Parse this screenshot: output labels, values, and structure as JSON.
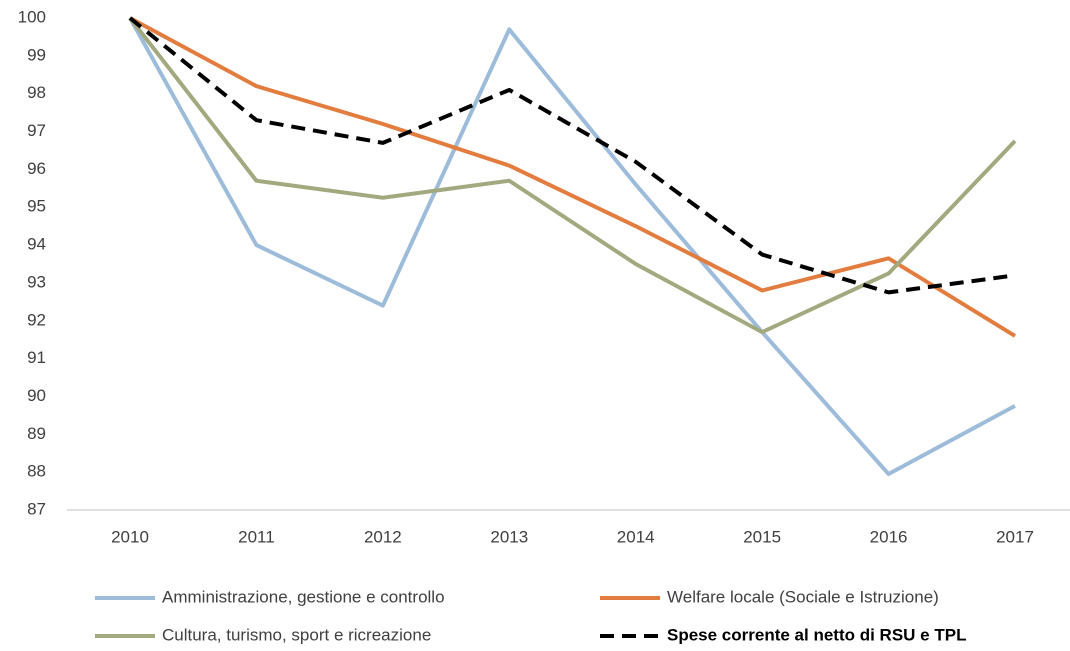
{
  "chart_data": {
    "type": "line",
    "categories": [
      "2010",
      "2011",
      "2012",
      "2013",
      "2014",
      "2015",
      "2016",
      "2017"
    ],
    "series": [
      {
        "name": "Amministrazione, gestione e controllo",
        "color": "#9dbcda",
        "values": [
          100,
          94.0,
          92.4,
          99.7,
          95.6,
          91.7,
          87.95,
          89.75
        ]
      },
      {
        "name": "Welfare locale (Sociale e Istruzione)",
        "color": "#e27d3f",
        "values": [
          100,
          98.2,
          97.2,
          96.1,
          94.5,
          92.8,
          93.65,
          91.6
        ]
      },
      {
        "name": "Cultura, turismo, sport e ricreazione",
        "color": "#a3a97f",
        "values": [
          100,
          95.7,
          95.25,
          95.7,
          93.5,
          91.7,
          93.25,
          96.75
        ]
      },
      {
        "name": "Spese corrente al netto di RSU e TPL",
        "color": "#000000",
        "line_style": "dashed",
        "legend_bold": true,
        "values": [
          100,
          97.3,
          96.7,
          98.1,
          96.2,
          93.75,
          92.75,
          93.2
        ]
      }
    ],
    "ylim": [
      87,
      100
    ],
    "yticks": [
      87,
      88,
      89,
      90,
      91,
      92,
      93,
      94,
      95,
      96,
      97,
      98,
      99,
      100
    ],
    "grid": false,
    "legend": "bottom"
  }
}
